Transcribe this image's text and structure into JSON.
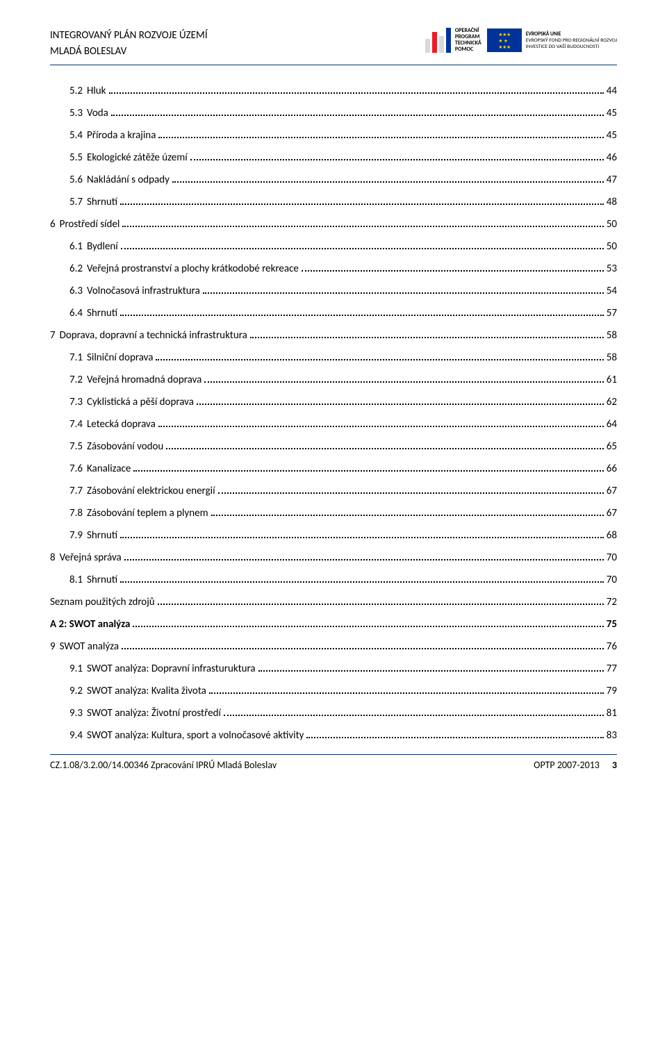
{
  "header": {
    "line1": "INTEGROVANÝ PLÁN ROZVOJE ÚZEMÍ",
    "line2": "MLADÁ BOLESLAV",
    "optp": {
      "l1": "OPERAČNÍ",
      "l2": "PROGRAM",
      "l3": "TECHNICKÁ",
      "l4": "POMOC"
    },
    "eu": {
      "l1": "EVROPSKÁ UNIE",
      "l2": "EVROPSKÝ FOND PRO REGIONÁLNÍ ROZVOJ",
      "l3": "INVESTICE DO VAŠÍ BUDOUCNOSTI"
    },
    "bar_colors": [
      "#d9d9d9",
      "#ed1c24",
      "#d9d9d9",
      "#003399"
    ]
  },
  "toc": [
    {
      "indent": 1,
      "num": "5.2",
      "label": "Hluk",
      "page": "44",
      "bold": false
    },
    {
      "indent": 1,
      "num": "5.3",
      "label": "Voda",
      "page": "45",
      "bold": false
    },
    {
      "indent": 1,
      "num": "5.4",
      "label": "Příroda a krajina",
      "page": "45",
      "bold": false
    },
    {
      "indent": 1,
      "num": "5.5",
      "label": "Ekologické zátěže území",
      "page": "46",
      "bold": false
    },
    {
      "indent": 1,
      "num": "5.6",
      "label": "Nakládání s odpady",
      "page": "47",
      "bold": false
    },
    {
      "indent": 1,
      "num": "5.7",
      "label": "Shrnutí",
      "page": "48",
      "bold": false
    },
    {
      "indent": 0,
      "num": "6",
      "label": "Prostředí sídel",
      "page": "50",
      "bold": false
    },
    {
      "indent": 1,
      "num": "6.1",
      "label": "Bydlení",
      "page": "50",
      "bold": false
    },
    {
      "indent": 1,
      "num": "6.2",
      "label": "Veřejná prostranství a plochy krátkodobé rekreace",
      "page": "53",
      "bold": false
    },
    {
      "indent": 1,
      "num": "6.3",
      "label": "Volnočasová infrastruktura",
      "page": "54",
      "bold": false
    },
    {
      "indent": 1,
      "num": "6.4",
      "label": "Shrnutí",
      "page": "57",
      "bold": false
    },
    {
      "indent": 0,
      "num": "7",
      "label": "Doprava, dopravní a technická infrastruktura",
      "page": "58",
      "bold": false
    },
    {
      "indent": 1,
      "num": "7.1",
      "label": "Silniční doprava",
      "page": "58",
      "bold": false
    },
    {
      "indent": 1,
      "num": "7.2",
      "label": "Veřejná hromadná doprava",
      "page": "61",
      "bold": false
    },
    {
      "indent": 1,
      "num": "7.3",
      "label": "Cyklistická a pěší doprava",
      "page": "62",
      "bold": false
    },
    {
      "indent": 1,
      "num": "7.4",
      "label": "Letecká doprava",
      "page": "64",
      "bold": false
    },
    {
      "indent": 1,
      "num": "7.5",
      "label": "Zásobování vodou",
      "page": "65",
      "bold": false
    },
    {
      "indent": 1,
      "num": "7.6",
      "label": "Kanalizace",
      "page": "66",
      "bold": false
    },
    {
      "indent": 1,
      "num": "7.7",
      "label": "Zásobování elektrickou energií",
      "page": "67",
      "bold": false
    },
    {
      "indent": 1,
      "num": "7.8",
      "label": "Zásobování teplem a plynem",
      "page": "67",
      "bold": false
    },
    {
      "indent": 1,
      "num": "7.9",
      "label": "Shrnutí",
      "page": "68",
      "bold": false
    },
    {
      "indent": 0,
      "num": "8",
      "label": "Veřejná správa",
      "page": "70",
      "bold": false
    },
    {
      "indent": 1,
      "num": "8.1",
      "label": "Shrnutí",
      "page": "70",
      "bold": false
    },
    {
      "indent": 0,
      "num": "",
      "label": "Seznam použitých zdrojů",
      "page": "72",
      "bold": false
    },
    {
      "indent": 0,
      "num": "",
      "label": "A 2: SWOT analýza",
      "page": "75",
      "bold": true
    },
    {
      "indent": 0,
      "num": "9",
      "label": "SWOT analýza",
      "page": "76",
      "bold": false
    },
    {
      "indent": 1,
      "num": "9.1",
      "label": "SWOT analýza: Dopravní infrasturuktura",
      "page": "77",
      "bold": false
    },
    {
      "indent": 1,
      "num": "9.2",
      "label": "SWOT analýza: Kvalita života",
      "page": "79",
      "bold": false
    },
    {
      "indent": 1,
      "num": "9.3",
      "label": "SWOT analýza: Životní prostředí",
      "page": "81",
      "bold": false
    },
    {
      "indent": 1,
      "num": "9.4",
      "label": "SWOT analýza: Kultura, sport a volnočasové aktivity",
      "page": "83",
      "bold": false
    }
  ],
  "footer": {
    "left": "CZ.1.08/3.2.00/14.00346 Zpracování IPRÚ Mladá Boleslav",
    "right1": "OPTP 2007-2013",
    "right2": "3"
  }
}
